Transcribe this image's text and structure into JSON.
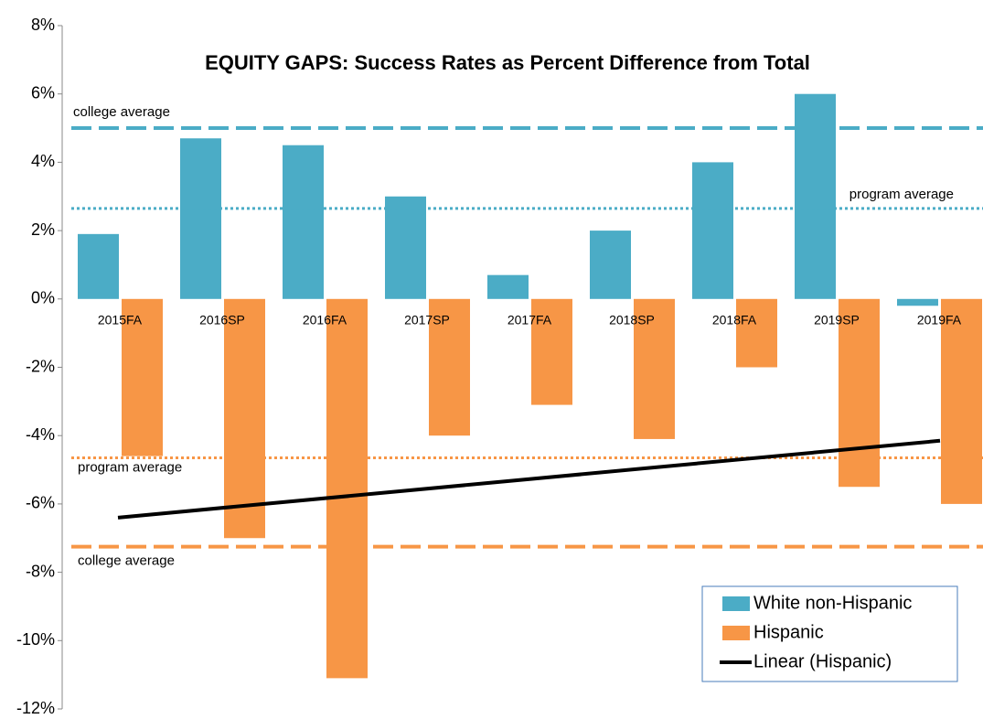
{
  "chart_data": {
    "type": "bar",
    "title": "EQUITY GAPS: Success Rates as Percent Difference from Total",
    "categories": [
      "2015FA",
      "2016SP",
      "2016FA",
      "2017SP",
      "2017FA",
      "2018SP",
      "2018FA",
      "2019SP",
      "2019FA"
    ],
    "series": [
      {
        "name": "White non-Hispanic",
        "color": "#4bacc6",
        "values": [
          1.9,
          4.7,
          4.5,
          3.0,
          0.7,
          2.0,
          4.0,
          6.0,
          -0.2
        ]
      },
      {
        "name": "Hispanic",
        "color": "#f79646",
        "values": [
          -4.6,
          -7.0,
          -11.1,
          -4.0,
          -3.1,
          -4.1,
          -2.0,
          -5.5,
          -6.0
        ]
      }
    ],
    "trendline": {
      "name": "Linear (Hispanic)",
      "color": "#000000",
      "values": [
        -6.4,
        -4.15
      ]
    },
    "reference_lines": [
      {
        "label": "college average",
        "value": 5.0,
        "color": "#4bacc6",
        "style": "dashed"
      },
      {
        "label": "program average",
        "value": 2.65,
        "color": "#4bacc6",
        "style": "dotted"
      },
      {
        "label": "program average",
        "value": -4.65,
        "color": "#f79646",
        "style": "dotted"
      },
      {
        "label": "college average",
        "value": -7.25,
        "color": "#f79646",
        "style": "dashed"
      }
    ],
    "ylim": [
      -12,
      8
    ],
    "yticks": [
      {
        "value": -12,
        "label": "-12%"
      },
      {
        "value": -10,
        "label": "-10%"
      },
      {
        "value": -8,
        "label": "-8%"
      },
      {
        "value": -6,
        "label": "-6%"
      },
      {
        "value": -4,
        "label": "-4%"
      },
      {
        "value": -2,
        "label": "-2%"
      },
      {
        "value": 0,
        "label": "0%"
      },
      {
        "value": 2,
        "label": "2%"
      },
      {
        "value": 4,
        "label": "4%"
      },
      {
        "value": 6,
        "label": "6%"
      },
      {
        "value": 8,
        "label": "8%"
      }
    ],
    "legend": "bottom-right"
  }
}
